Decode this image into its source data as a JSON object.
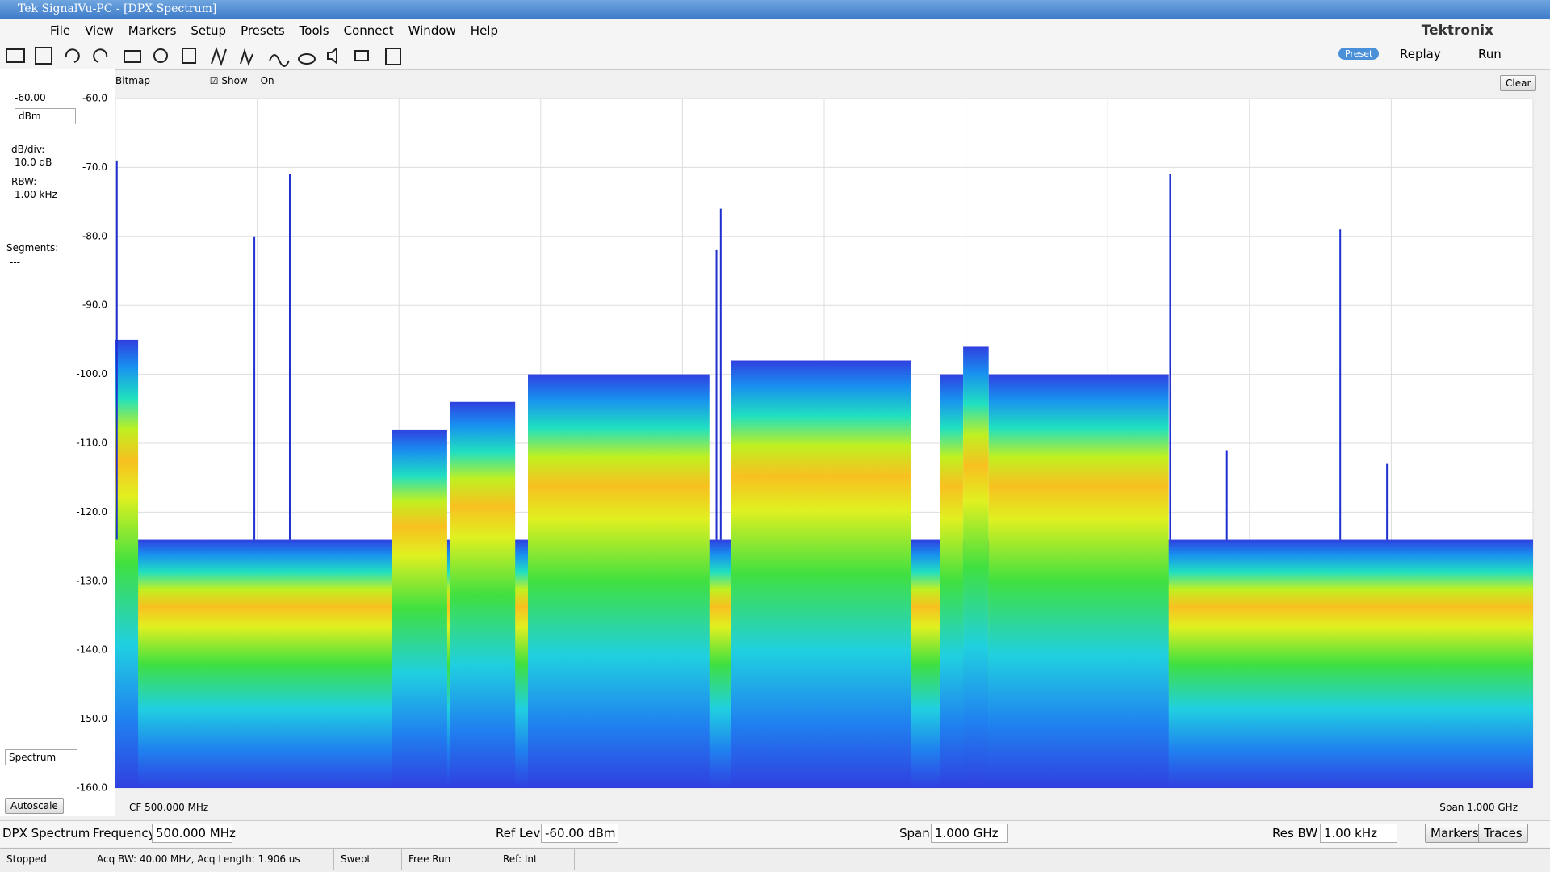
{
  "window": {
    "title": "Tek SignalVu-PC - [DPX Spectrum]"
  },
  "menu": [
    "File",
    "View",
    "Markers",
    "Setup",
    "Presets",
    "Tools",
    "Connect",
    "Window",
    "Help"
  ],
  "brand": "Tektronix",
  "toolbar": {
    "preset": "Preset",
    "replay": "Replay",
    "run": "Run"
  },
  "panel": {
    "bitmap": "Bitmap",
    "show": "Show",
    "on": "On",
    "clear": "Clear"
  },
  "left": {
    "ref": "-60.00",
    "unit": "dBm",
    "dbdiv_label": "dB/div:",
    "dbdiv": "10.0 dB",
    "rbw_label": "RBW:",
    "rbw": "1.00 kHz",
    "segments_label": "Segments:",
    "segments": "---",
    "view": "Spectrum",
    "autoscale": "Autoscale"
  },
  "display": {
    "ylim": [
      -160,
      -60
    ],
    "xlim": [
      0,
      1000
    ],
    "yticks": [
      {
        "value": -60,
        "label": "-60.0"
      },
      {
        "value": -70,
        "label": "-70.0"
      },
      {
        "value": -80,
        "label": "-80.0"
      },
      {
        "value": -90,
        "label": "-90.0"
      },
      {
        "value": -100,
        "label": "-100.0"
      },
      {
        "value": -110,
        "label": "-110.0"
      },
      {
        "value": -120,
        "label": "-120.0"
      },
      {
        "value": -130,
        "label": "-130.0"
      },
      {
        "value": -140,
        "label": "-140.0"
      },
      {
        "value": -150,
        "label": "-150.0"
      },
      {
        "value": -160,
        "label": "-160.0"
      }
    ],
    "floor": -124,
    "bands": [
      {
        "start": 0,
        "end": 16,
        "level": -95
      },
      {
        "start": 195,
        "end": 234,
        "level": -108
      },
      {
        "start": 236,
        "end": 282,
        "level": -104
      },
      {
        "start": 291,
        "end": 419,
        "level": -100
      },
      {
        "start": 434,
        "end": 561,
        "level": -98
      },
      {
        "start": 582,
        "end": 598,
        "level": -100
      },
      {
        "start": 598,
        "end": 616,
        "level": -96
      },
      {
        "start": 616,
        "end": 743,
        "level": -100
      }
    ],
    "spurs": [
      {
        "freq": 1,
        "level": -69
      },
      {
        "freq": 98,
        "level": -80
      },
      {
        "freq": 123,
        "level": -71
      },
      {
        "freq": 424,
        "level": -82
      },
      {
        "freq": 427,
        "level": -76
      },
      {
        "freq": 744,
        "level": -71
      },
      {
        "freq": 784,
        "level": -111
      },
      {
        "freq": 864,
        "level": -79
      },
      {
        "freq": 897,
        "level": -113
      }
    ],
    "cf": "CF  500.000 MHz",
    "span": "Span  1.000 GHz"
  },
  "controls": {
    "mode": "DPX Spectrum",
    "freq_label": "Frequency",
    "freq": "500.000 MHz",
    "ref_label": "Ref Lev",
    "ref": "-60.00 dBm",
    "span_label": "Span",
    "span": "1.000 GHz",
    "rbw_label": "Res BW",
    "rbw": "1.00 kHz",
    "markers": "Markers",
    "traces": "Traces"
  },
  "status": [
    "Stopped",
    "Acq BW: 40.00 MHz, Acq Length: 1.906 us",
    "Swept",
    "Free Run",
    "Ref: Int"
  ]
}
